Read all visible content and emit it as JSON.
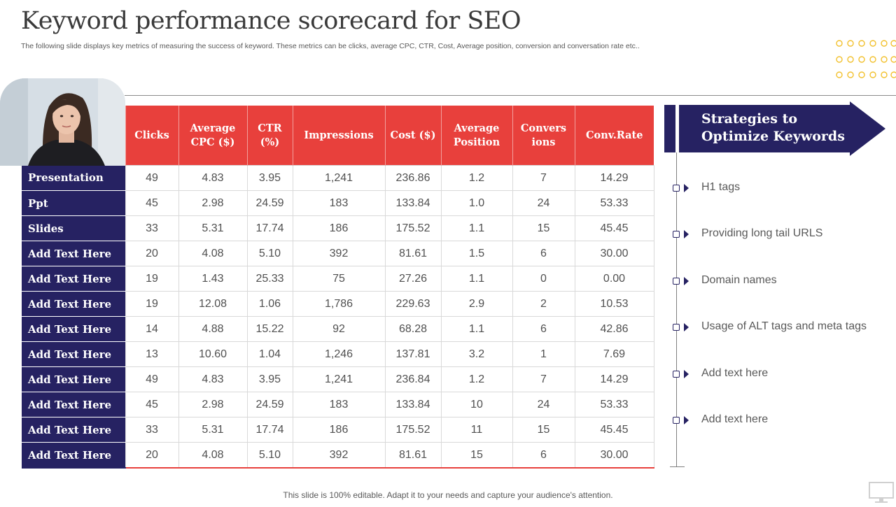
{
  "header": {
    "title": "Keyword performance scorecard for SEO",
    "subtitle": "The following slide displays key metrics of measuring the success of keyword. These metrics can be clicks, average CPC, CTR, Cost, Average position, conversion and conversation rate etc.."
  },
  "table": {
    "columns": [
      "Clicks",
      "Average CPC ($)",
      "CTR (%)",
      "Impressions",
      "Cost ($)",
      "Average Position",
      "Convers ions",
      "Conv.Rate"
    ],
    "rows": [
      {
        "label": "Presentation",
        "values": [
          "49",
          "4.83",
          "3.95",
          "1,241",
          "236.86",
          "1.2",
          "7",
          "14.29"
        ]
      },
      {
        "label": "Ppt",
        "values": [
          "45",
          "2.98",
          "24.59",
          "183",
          "133.84",
          "1.0",
          "24",
          "53.33"
        ]
      },
      {
        "label": "Slides",
        "values": [
          "33",
          "5.31",
          "17.74",
          "186",
          "175.52",
          "1.1",
          "15",
          "45.45"
        ]
      },
      {
        "label": "Add Text Here",
        "values": [
          "20",
          "4.08",
          "5.10",
          "392",
          "81.61",
          "1.5",
          "6",
          "30.00"
        ]
      },
      {
        "label": "Add Text Here",
        "values": [
          "19",
          "1.43",
          "25.33",
          "75",
          "27.26",
          "1.1",
          "0",
          "0.00"
        ]
      },
      {
        "label": "Add Text Here",
        "values": [
          "19",
          "12.08",
          "1.06",
          "1,786",
          "229.63",
          "2.9",
          "2",
          "10.53"
        ]
      },
      {
        "label": "Add Text Here",
        "values": [
          "14",
          "4.88",
          "15.22",
          "92",
          "68.28",
          "1.1",
          "6",
          "42.86"
        ]
      },
      {
        "label": "Add Text Here",
        "values": [
          "13",
          "10.60",
          "1.04",
          "1,246",
          "137.81",
          "3.2",
          "1",
          "7.69"
        ]
      },
      {
        "label": "Add Text Here",
        "values": [
          "49",
          "4.83",
          "3.95",
          "1,241",
          "236.84",
          "1.2",
          "7",
          "14.29"
        ]
      },
      {
        "label": "Add Text Here",
        "values": [
          "45",
          "2.98",
          "24.59",
          "183",
          "133.84",
          "10",
          "24",
          "53.33"
        ]
      },
      {
        "label": "Add Text Here",
        "values": [
          "33",
          "5.31",
          "17.74",
          "186",
          "175.52",
          "11",
          "15",
          "45.45"
        ]
      },
      {
        "label": "Add Text Here",
        "values": [
          "20",
          "4.08",
          "5.10",
          "392",
          "81.61",
          "15",
          "6",
          "30.00"
        ]
      }
    ]
  },
  "strategies": {
    "title_line1": "Strategies to",
    "title_line2": "Optimize Keywords",
    "items": [
      "H1 tags",
      "Providing long tail URLS",
      "Domain names",
      "Usage of ALT tags and meta tags",
      "Add text here",
      "Add text here"
    ]
  },
  "footer": {
    "note": "This slide is 100% editable. Adapt it to your needs and capture your audience's attention."
  },
  "colors": {
    "header_red": "#e8403c",
    "navy": "#262262",
    "dots_gold": "#f2c12e"
  },
  "icons": {
    "photo": "person-photo",
    "dots": "dot-grid-decoration",
    "bullet": "checkbox-arrow-bullet",
    "corner": "monitor-icon"
  }
}
